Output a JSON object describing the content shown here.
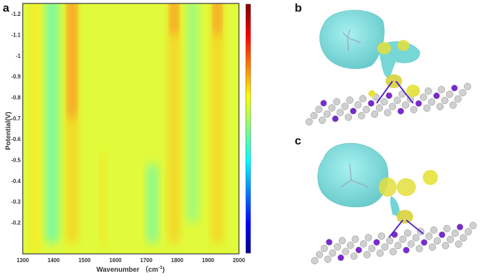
{
  "panels": {
    "a": "a",
    "b": "b",
    "c": "c"
  },
  "chart_data": {
    "type": "heatmap",
    "title": "",
    "xlabel": "Wavenumber （cm",
    "xlabel_sup": "-1",
    "xlabel_close": ")",
    "ylabel": "Potential(V)",
    "xlim": [
      1300,
      2000
    ],
    "ylim": [
      -1.25,
      -0.05
    ],
    "y_reversed": true,
    "xticks": [
      "1300",
      "1400",
      "1500",
      "1600",
      "1700",
      "1800",
      "1900",
      "2000"
    ],
    "yticks": [
      "-1.2",
      "-1.1",
      "-1",
      "-0.9",
      "-0.8",
      "-0.7",
      "-0.6",
      "-0.5",
      "-0.4",
      "-0.3",
      "-0.2"
    ],
    "colormap": "jet",
    "colorbar": {
      "labels": false,
      "range": [
        0,
        1
      ]
    },
    "background_level": 0.6,
    "bands": [
      {
        "wavenumber": 1340,
        "potential": [
          -1.25,
          -0.05
        ],
        "width": 25,
        "level": 0.65
      },
      {
        "wavenumber": 1395,
        "potential": [
          -1.25,
          -0.1
        ],
        "width": 35,
        "level": 0.45
      },
      {
        "wavenumber": 1460,
        "potential": [
          -1.25,
          -0.1
        ],
        "width": 30,
        "level": 0.68
      },
      {
        "wavenumber": 1460,
        "potential": [
          -1.25,
          -0.7
        ],
        "width": 20,
        "level": 0.76
      },
      {
        "wavenumber": 1560,
        "potential": [
          -0.5,
          -0.1
        ],
        "width": 15,
        "level": 0.66
      },
      {
        "wavenumber": 1720,
        "potential": [
          -0.45,
          -0.1
        ],
        "width": 30,
        "level": 0.47
      },
      {
        "wavenumber": 1790,
        "potential": [
          -1.25,
          -0.1
        ],
        "width": 30,
        "level": 0.68
      },
      {
        "wavenumber": 1790,
        "potential": [
          -1.25,
          -1.1
        ],
        "width": 18,
        "level": 0.76
      },
      {
        "wavenumber": 1850,
        "potential": [
          -1.25,
          -0.2
        ],
        "width": 30,
        "level": 0.5
      },
      {
        "wavenumber": 1930,
        "potential": [
          -1.25,
          -0.1
        ],
        "width": 30,
        "level": 0.68
      },
      {
        "wavenumber": 1930,
        "potential": [
          -1.25,
          -1.1
        ],
        "width": 18,
        "level": 0.76
      }
    ]
  },
  "colors": {
    "isosurface_cyan": "#6fd6d6",
    "isosurface_yellow": "#e6e23a",
    "carbon": "#d0d0d0",
    "nitrogen": "#7a2ad0"
  }
}
